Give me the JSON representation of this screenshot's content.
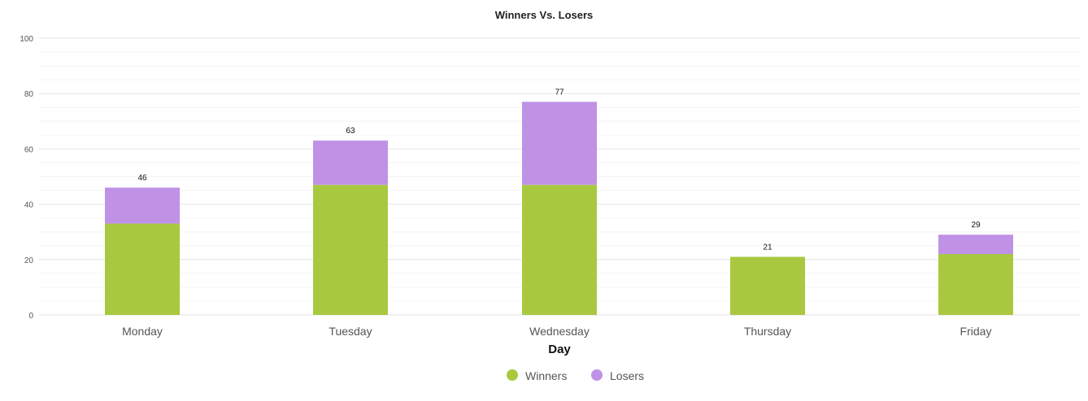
{
  "chart_data": {
    "type": "bar",
    "stacked": true,
    "title": "Winners Vs. Losers",
    "xlabel": "Day",
    "ylabel": "",
    "ylim": [
      0,
      100
    ],
    "y_ticks": [
      "0",
      "20",
      "40",
      "60",
      "80",
      "100"
    ],
    "categories": [
      "Monday",
      "Tuesday",
      "Wednesday",
      "Thursday",
      "Friday"
    ],
    "series": [
      {
        "name": "Winners",
        "values": [
          33,
          47,
          47,
          21,
          22
        ],
        "color": "#a8c93f"
      },
      {
        "name": "Losers",
        "values": [
          13,
          16,
          30,
          0,
          7
        ],
        "color": "#bf92e6"
      }
    ],
    "totals": [
      "46",
      "63",
      "77",
      "21",
      "29"
    ],
    "grid": true,
    "legend_position": "bottom-center"
  }
}
